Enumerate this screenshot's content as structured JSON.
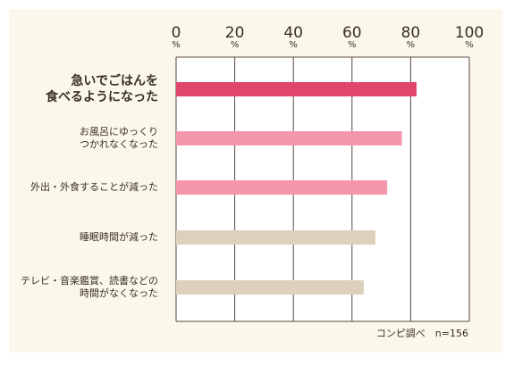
{
  "chart_data": {
    "type": "bar",
    "orientation": "horizontal",
    "categories": [
      "急いでごはんを\n食べるようになった",
      "お風呂にゆっくり\nつかれなくなった",
      "外出・外食することが減った",
      "睡眠時間が減った",
      "テレビ・音楽鑑賞、読書などの\n時間がなくなった"
    ],
    "values": [
      82,
      77,
      72,
      68,
      64
    ],
    "xlim": [
      0,
      100
    ],
    "ticks": [
      {
        "num": "0",
        "unit": "%"
      },
      {
        "num": "20",
        "unit": "%"
      },
      {
        "num": "40",
        "unit": "%"
      },
      {
        "num": "60",
        "unit": "%"
      },
      {
        "num": "80",
        "unit": "%"
      },
      {
        "num": "100",
        "unit": "%"
      }
    ],
    "tick_values": [
      0,
      20,
      40,
      60,
      80,
      100
    ],
    "grid": true,
    "colors": [
      "#e0456a",
      "#f596ad",
      "#f596ad",
      "#ddd1bd",
      "#ddd1bd"
    ],
    "source_note": "コンピ調べ　n=156"
  }
}
